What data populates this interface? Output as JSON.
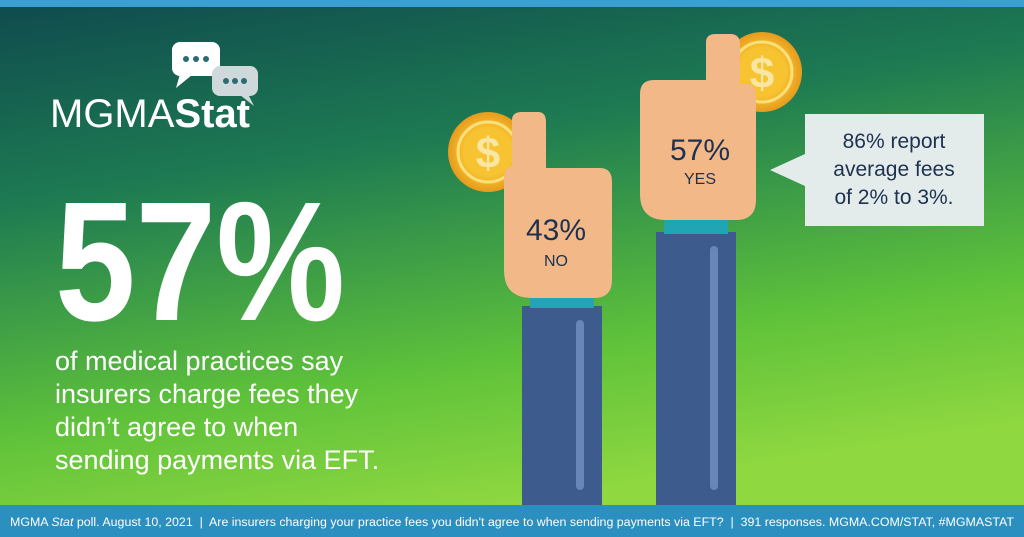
{
  "logo": {
    "first": "MGMA",
    "second": "Stat"
  },
  "headline": "57%",
  "body_lines": [
    "of medical practices say",
    "insurers charge fees they",
    "didn’t agree to when",
    "sending payments via EFT."
  ],
  "no_hand": {
    "percent": "43%",
    "label": "NO"
  },
  "yes_hand": {
    "percent": "57%",
    "label": "YES"
  },
  "callout_lines": [
    "86% report",
    "average fees",
    "of 2% to 3%."
  ],
  "footer": {
    "source_prefix": "MGMA ",
    "source_italic": "Stat",
    "source_rest": " poll. August 10, 2021  |  Are insurers charging your practice fees you didn't agree to when sending payments via EFT?  |  391 responses. MGMA.COM/STAT, #MGMASTAT"
  }
}
